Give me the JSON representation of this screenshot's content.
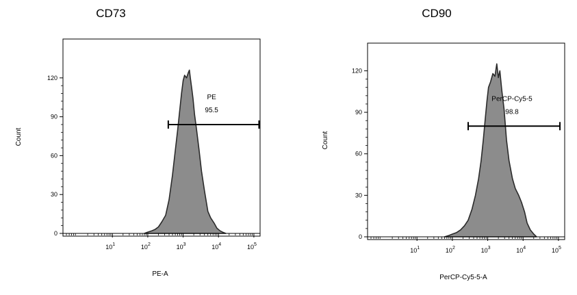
{
  "chart_data": [
    {
      "type": "area",
      "title": "CD73",
      "xlabel": "PE-A",
      "ylabel": "Count",
      "x_scale": "log",
      "xlim": [
        0.4,
        150000
      ],
      "ylim": [
        0,
        150
      ],
      "grid": false,
      "y_ticks": [
        "0",
        "30",
        "60",
        "90",
        "120"
      ],
      "x_ticks": [
        {
          "base": "10",
          "exp": "1",
          "value": 10
        },
        {
          "base": "10",
          "exp": "2",
          "value": 100
        },
        {
          "base": "10",
          "exp": "3",
          "value": 1000
        },
        {
          "base": "10",
          "exp": "4",
          "value": 10000
        },
        {
          "base": "10",
          "exp": "5",
          "value": 100000
        }
      ],
      "gate": {
        "name": "PE",
        "percent": "95.5",
        "x_start": 380,
        "x_end": 140000,
        "y": 84
      },
      "histogram": {
        "x": [
          80,
          100,
          130,
          160,
          200,
          250,
          320,
          400,
          500,
          600,
          700,
          800,
          900,
          1000,
          1100,
          1250,
          1400,
          1500,
          1600,
          1750,
          1900,
          2100,
          2400,
          2800,
          3300,
          4000,
          5000,
          6000,
          7500,
          9000,
          11000,
          13000,
          16000
        ],
        "y": [
          0,
          1,
          2,
          3,
          5,
          9,
          14,
          26,
          45,
          64,
          80,
          95,
          108,
          118,
          122,
          120,
          124,
          126,
          120,
          112,
          104,
          92,
          80,
          65,
          48,
          33,
          17,
          12,
          8,
          4,
          2,
          1,
          0
        ]
      },
      "colors": {
        "fill": "#8c8c8c",
        "stroke": "#2a2a2a"
      }
    },
    {
      "type": "area",
      "title": "CD90",
      "xlabel": "PerCP-Cy5-5-A",
      "ylabel": "Count",
      "x_scale": "log",
      "xlim": [
        0.4,
        150000
      ],
      "ylim": [
        0,
        140
      ],
      "grid": false,
      "y_ticks": [
        "0",
        "30",
        "60",
        "90",
        "120"
      ],
      "x_ticks": [
        {
          "base": "10",
          "exp": "1",
          "value": 10
        },
        {
          "base": "10",
          "exp": "2",
          "value": 100
        },
        {
          "base": "10",
          "exp": "3",
          "value": 1000
        },
        {
          "base": "10",
          "exp": "4",
          "value": 10000
        },
        {
          "base": "10",
          "exp": "5",
          "value": 100000
        }
      ],
      "gate": {
        "name": "PerCP-Cy5-5",
        "percent": "98.8",
        "x_start": 280,
        "x_end": 110000,
        "y": 80
      },
      "histogram": {
        "x": [
          60,
          80,
          100,
          130,
          170,
          220,
          280,
          360,
          450,
          550,
          650,
          750,
          850,
          950,
          1050,
          1200,
          1400,
          1600,
          1800,
          2000,
          2200,
          2500,
          2900,
          3400,
          4000,
          5000,
          6000,
          7500,
          9000,
          11000,
          13000,
          16000,
          20000,
          24000
        ],
        "y": [
          0,
          1,
          2,
          3,
          5,
          8,
          12,
          20,
          30,
          42,
          55,
          70,
          85,
          98,
          108,
          112,
          118,
          116,
          125,
          115,
          120,
          106,
          92,
          70,
          55,
          42,
          35,
          30,
          25,
          18,
          10,
          5,
          2,
          0
        ]
      },
      "colors": {
        "fill": "#8c8c8c",
        "stroke": "#2a2a2a"
      }
    }
  ]
}
